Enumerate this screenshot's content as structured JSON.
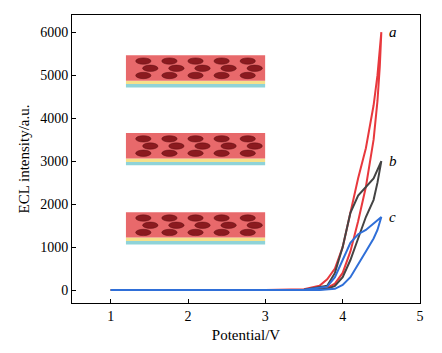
{
  "chart_data": {
    "type": "line",
    "x_label": "Potential/V",
    "y_label": "ECL intensity/a.u.",
    "xlim": [
      0.5,
      5
    ],
    "xticks": [
      1,
      2,
      3,
      4,
      5
    ],
    "ylim": [
      -300,
      6400
    ],
    "yticks": [
      0,
      1000,
      2000,
      3000,
      4000,
      5000,
      6000
    ],
    "grid": false,
    "series": [
      {
        "name": "a",
        "color": "#e8383d",
        "x": [
          1.0,
          2.0,
          3.0,
          3.5,
          3.7,
          3.8,
          3.9,
          4.0,
          4.1,
          4.2,
          4.3,
          4.4,
          4.45,
          4.5,
          4.48,
          4.45,
          4.4,
          4.3,
          4.2,
          4.1,
          4.0,
          3.9,
          3.8,
          3.6,
          3.0,
          1.0
        ],
        "values": [
          0,
          0,
          0,
          20,
          100,
          250,
          500,
          1000,
          1800,
          2600,
          3300,
          4300,
          5000,
          6000,
          5200,
          4400,
          3500,
          2400,
          1600,
          900,
          400,
          150,
          50,
          0,
          0,
          0
        ]
      },
      {
        "name": "b",
        "color": "#444444",
        "x": [
          1.0,
          2.0,
          3.0,
          3.5,
          3.8,
          3.9,
          4.0,
          4.1,
          4.2,
          4.3,
          4.4,
          4.5,
          4.45,
          4.4,
          4.3,
          4.2,
          4.1,
          4.0,
          3.9,
          3.8,
          3.6,
          3.0,
          1.0
        ],
        "values": [
          0,
          0,
          0,
          10,
          100,
          400,
          1000,
          1800,
          2200,
          2400,
          2600,
          3000,
          2500,
          2100,
          1700,
          1200,
          700,
          300,
          100,
          30,
          0,
          0,
          0
        ]
      },
      {
        "name": "c",
        "color": "#2f6fd8",
        "x": [
          1.0,
          2.0,
          3.0,
          3.5,
          3.8,
          3.9,
          4.0,
          4.1,
          4.2,
          4.3,
          4.4,
          4.5,
          4.45,
          4.4,
          4.3,
          4.2,
          4.1,
          4.0,
          3.9,
          3.7,
          3.0,
          1.0
        ],
        "values": [
          0,
          0,
          0,
          10,
          80,
          300,
          700,
          1100,
          1300,
          1400,
          1550,
          1700,
          1400,
          1200,
          900,
          600,
          300,
          120,
          30,
          0,
          0,
          0
        ]
      }
    ]
  }
}
